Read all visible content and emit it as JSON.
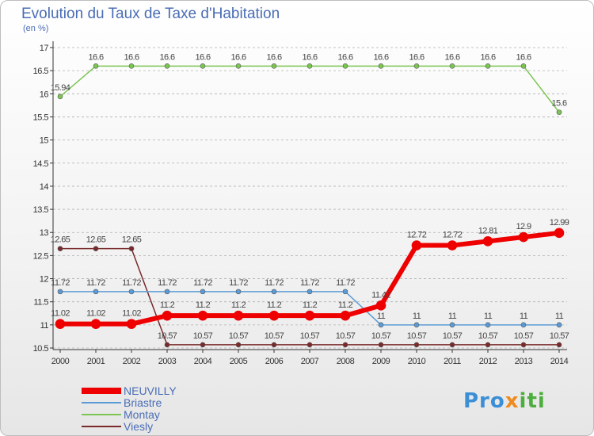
{
  "title": "Evolution du Taux de Taxe d'Habitation",
  "unit_label": "(en %)",
  "logo": {
    "part1": "Pro",
    "part2": "x",
    "part3": "iti"
  },
  "colors": {
    "title": "#4a6db5",
    "grid": "#b0b0b0"
  },
  "chart_data": {
    "type": "line",
    "x": [
      "2000",
      "2001",
      "2002",
      "2003",
      "2004",
      "2005",
      "2006",
      "2007",
      "2008",
      "2009",
      "2010",
      "2011",
      "2012",
      "2013",
      "2014"
    ],
    "ylim": [
      10.5,
      17
    ],
    "yticks": [
      "10.5",
      "11",
      "11.5",
      "12",
      "12.5",
      "13",
      "13.5",
      "14",
      "14.5",
      "15",
      "15.5",
      "16",
      "16.5",
      "17"
    ],
    "grid": "horizontal-dashed",
    "legend_position": "bottom-left",
    "series": [
      {
        "name": "Montay",
        "color": "#7cc552",
        "width": 1.5,
        "marker": 3,
        "values": [
          15.94,
          16.6,
          16.6,
          16.6,
          16.6,
          16.6,
          16.6,
          16.6,
          16.6,
          16.6,
          16.6,
          16.6,
          16.6,
          16.6,
          15.6
        ],
        "labels": [
          "15.94",
          "16.6",
          "16.6",
          "16.6",
          "16.6",
          "16.6",
          "16.6",
          "16.6",
          "16.6",
          "16.6",
          "16.6",
          "16.6",
          "16.6",
          "16.6",
          "15.6"
        ]
      },
      {
        "name": "Viesly",
        "color": "#7a2a2a",
        "width": 1.5,
        "marker": 3,
        "values": [
          12.65,
          12.65,
          12.65,
          10.57,
          10.57,
          10.57,
          10.57,
          10.57,
          10.57,
          10.57,
          10.57,
          10.57,
          10.57,
          10.57,
          10.57
        ],
        "labels": [
          "12.65",
          "12.65",
          "12.65",
          "10.57",
          "10.57",
          "10.57",
          "10.57",
          "10.57",
          "10.57",
          "10.57",
          "10.57",
          "10.57",
          "10.57",
          "10.57",
          "10.57"
        ]
      },
      {
        "name": "Briastre",
        "color": "#5b9bd5",
        "width": 1.5,
        "marker": 3,
        "values": [
          11.72,
          11.72,
          11.72,
          11.72,
          11.72,
          11.72,
          11.72,
          11.72,
          11.72,
          11,
          11,
          11,
          11,
          11,
          11
        ],
        "labels": [
          "11.72",
          "11.72",
          "11.72",
          "11.72",
          "11.72",
          "11.72",
          "11.72",
          "11.72",
          "11.72",
          "11",
          "11",
          "11",
          "11",
          "11",
          "11"
        ]
      },
      {
        "name": "NEUVILLY",
        "color": "#ee0000",
        "width": 6,
        "marker": 6,
        "values": [
          11.02,
          11.02,
          11.02,
          11.2,
          11.2,
          11.2,
          11.2,
          11.2,
          11.2,
          11.42,
          12.72,
          12.72,
          12.81,
          12.9,
          12.99
        ],
        "labels": [
          "11.02",
          "11.02",
          "11.02",
          "11.2",
          "11.2",
          "11.2",
          "11.2",
          "11.2",
          "11.2",
          "11.42",
          "12.72",
          "12.72",
          "12.81",
          "12.9",
          "12.99"
        ]
      }
    ],
    "legend_order": [
      "NEUVILLY",
      "Briastre",
      "Montay",
      "Viesly"
    ]
  }
}
